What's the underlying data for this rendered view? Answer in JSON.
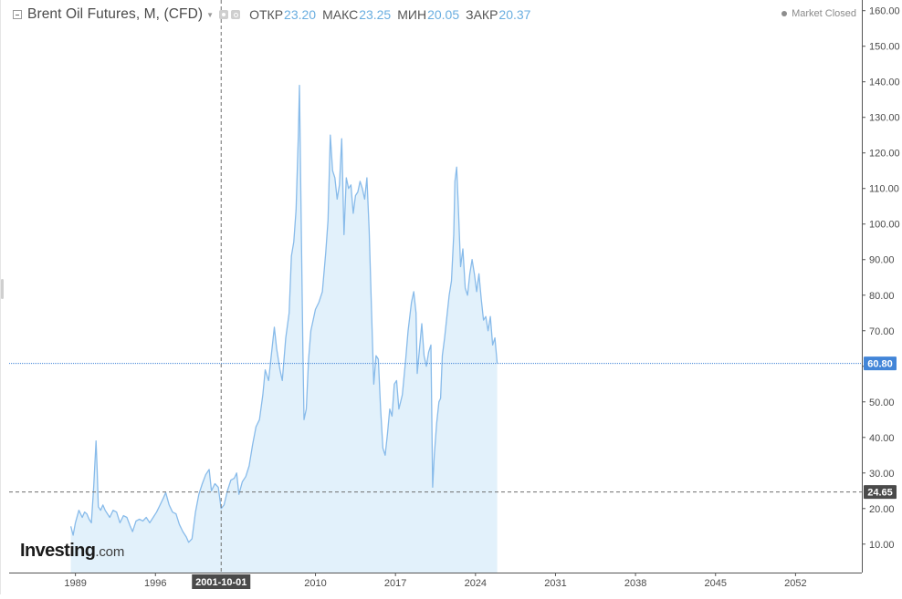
{
  "legend": {
    "title": "Brent Oil Futures, M, (CFD)",
    "open_label": "ОТКР",
    "open_value": "23.20",
    "high_label": "МАКС",
    "high_value": "23.25",
    "low_label": "МИН",
    "low_value": "20.05",
    "close_label": "ЗАКР",
    "close_value": "20.37"
  },
  "market_status": "Market Closed",
  "logo": {
    "main": "Investing",
    "sub": ".com"
  },
  "colors": {
    "line": "#88bbea",
    "area": "#e2f1fb",
    "ohlc_value": "#6aaee0",
    "last_price_badge": "#4285d8",
    "crosshair_badge": "#4a4a4a",
    "grid": "#e9e9e9"
  },
  "chart_data": {
    "type": "area",
    "title": "Brent Oil Futures, M, (CFD)",
    "xlabel": "",
    "ylabel": "",
    "x_range": [
      1983.2,
      2057.8
    ],
    "ylim": [
      2,
      163
    ],
    "grid": false,
    "y_ticks": [
      "10.00",
      "20.00",
      "30.00",
      "40.00",
      "50.00",
      "60.00",
      "70.00",
      "80.00",
      "90.00",
      "100.00",
      "110.00",
      "120.00",
      "130.00",
      "140.00",
      "150.00",
      "160.00"
    ],
    "x_ticks": [
      {
        "label": "1989",
        "x": 1989
      },
      {
        "label": "1996",
        "x": 1996
      },
      {
        "label": "2010",
        "x": 2010
      },
      {
        "label": "2017",
        "x": 2017
      },
      {
        "label": "2024",
        "x": 2024
      },
      {
        "label": "2031",
        "x": 2031
      },
      {
        "label": "2038",
        "x": 2038
      },
      {
        "label": "2045",
        "x": 2045
      },
      {
        "label": "2052",
        "x": 2052
      }
    ],
    "last_price": {
      "value": 60.8,
      "label": "60.80"
    },
    "crosshair": {
      "x": 2001.75,
      "x_label": "2001-10-01",
      "y": 24.65,
      "y_label": "24.65"
    },
    "series": [
      {
        "x": [
          1988.6,
          1988.8,
          1989.0,
          1989.3,
          1989.6,
          1989.8,
          1990.0,
          1990.2,
          1990.4,
          1990.6,
          1990.8,
          1990.9,
          1991.0,
          1991.2,
          1991.4,
          1991.6,
          1991.8,
          1992.0,
          1992.3,
          1992.6,
          1992.9,
          1993.2,
          1993.5,
          1993.8,
          1994.0,
          1994.3,
          1994.6,
          1994.9,
          1995.2,
          1995.5,
          1995.8,
          1996.1,
          1996.4,
          1996.7,
          1996.9,
          1997.2,
          1997.5,
          1997.8,
          1998.1,
          1998.4,
          1998.7,
          1998.9,
          1999.2,
          1999.5,
          1999.8,
          2000.1,
          2000.4,
          2000.7,
          2000.9,
          2001.2,
          2001.5,
          2001.75,
          2002.0,
          2002.3,
          2002.6,
          2002.9,
          2003.1,
          2003.3,
          2003.6,
          2003.9,
          2004.2,
          2004.5,
          2004.8,
          2005.1,
          2005.4,
          2005.6,
          2005.9,
          2006.1,
          2006.4,
          2006.6,
          2006.9,
          2007.1,
          2007.4,
          2007.7,
          2007.9,
          2008.1,
          2008.3,
          2008.5,
          2008.6,
          2008.75,
          2008.9,
          2009.0,
          2009.2,
          2009.4,
          2009.6,
          2009.8,
          2010.0,
          2010.3,
          2010.6,
          2010.9,
          2011.1,
          2011.3,
          2011.5,
          2011.7,
          2011.9,
          2012.1,
          2012.3,
          2012.5,
          2012.7,
          2012.9,
          2013.1,
          2013.3,
          2013.5,
          2013.7,
          2013.9,
          2014.1,
          2014.3,
          2014.5,
          2014.7,
          2014.9,
          2015.1,
          2015.3,
          2015.5,
          2015.7,
          2015.9,
          2016.1,
          2016.3,
          2016.5,
          2016.7,
          2016.9,
          2017.1,
          2017.3,
          2017.6,
          2017.9,
          2018.1,
          2018.4,
          2018.6,
          2018.8,
          2018.9,
          2019.1,
          2019.3,
          2019.5,
          2019.7,
          2019.9,
          2020.1,
          2020.25,
          2020.4,
          2020.6,
          2020.8,
          2020.95,
          2021.1,
          2021.3,
          2021.5,
          2021.7,
          2021.9,
          2022.1,
          2022.2,
          2022.35,
          2022.5,
          2022.7,
          2022.9,
          2023.1,
          2023.3,
          2023.5,
          2023.7,
          2023.9,
          2024.1,
          2024.3,
          2024.5,
          2024.7,
          2024.9,
          2025.1,
          2025.3,
          2025.5,
          2025.7,
          2025.9
        ],
        "values": [
          15.0,
          12.5,
          16.0,
          19.5,
          17.5,
          19.0,
          18.5,
          17.0,
          16.0,
          26.0,
          39.0,
          31.0,
          20.5,
          19.5,
          21.0,
          19.5,
          18.5,
          17.5,
          19.5,
          19.0,
          16.0,
          18.0,
          17.5,
          15.0,
          13.5,
          16.5,
          17.0,
          16.5,
          17.5,
          16.0,
          17.5,
          19.0,
          21.0,
          23.0,
          24.5,
          21.0,
          19.0,
          18.5,
          15.5,
          13.5,
          12.0,
          10.5,
          11.5,
          19.0,
          24.0,
          27.0,
          29.5,
          31.0,
          25.0,
          27.0,
          26.0,
          20.0,
          21.0,
          25.0,
          28.0,
          28.5,
          30.0,
          24.0,
          27.5,
          29.0,
          32.0,
          38.0,
          43.0,
          45.0,
          52.0,
          59.0,
          56.0,
          62.0,
          71.0,
          65.0,
          59.0,
          56.0,
          68.0,
          75.0,
          91.0,
          95.0,
          104.0,
          125.0,
          139.0,
          101.0,
          64.0,
          45.0,
          48.0,
          62.0,
          70.0,
          73.0,
          76.0,
          78.0,
          81.0,
          92.0,
          101.0,
          125.0,
          115.0,
          113.0,
          107.0,
          111.0,
          124.0,
          97.0,
          113.0,
          110.0,
          111.0,
          103.0,
          108.0,
          109.0,
          112.0,
          110.0,
          107.0,
          113.0,
          98.0,
          76.0,
          55.0,
          63.0,
          62.0,
          48.0,
          37.0,
          35.0,
          41.0,
          48.0,
          46.0,
          55.0,
          56.0,
          48.0,
          52.0,
          62.0,
          70.0,
          78.0,
          81.0,
          75.0,
          58.0,
          65.0,
          72.0,
          63.0,
          60.0,
          64.0,
          66.0,
          26.0,
          35.0,
          44.0,
          50.0,
          51.0,
          63.0,
          68.0,
          74.0,
          80.0,
          84.0,
          97.0,
          112.0,
          116.0,
          105.0,
          88.0,
          93.0,
          82.0,
          80.0,
          86.0,
          90.0,
          86.0,
          81.0,
          86.0,
          79.0,
          73.0,
          74.0,
          70.0,
          74.0,
          66.0,
          68.0,
          60.8
        ],
        "name": ""
      }
    ]
  }
}
